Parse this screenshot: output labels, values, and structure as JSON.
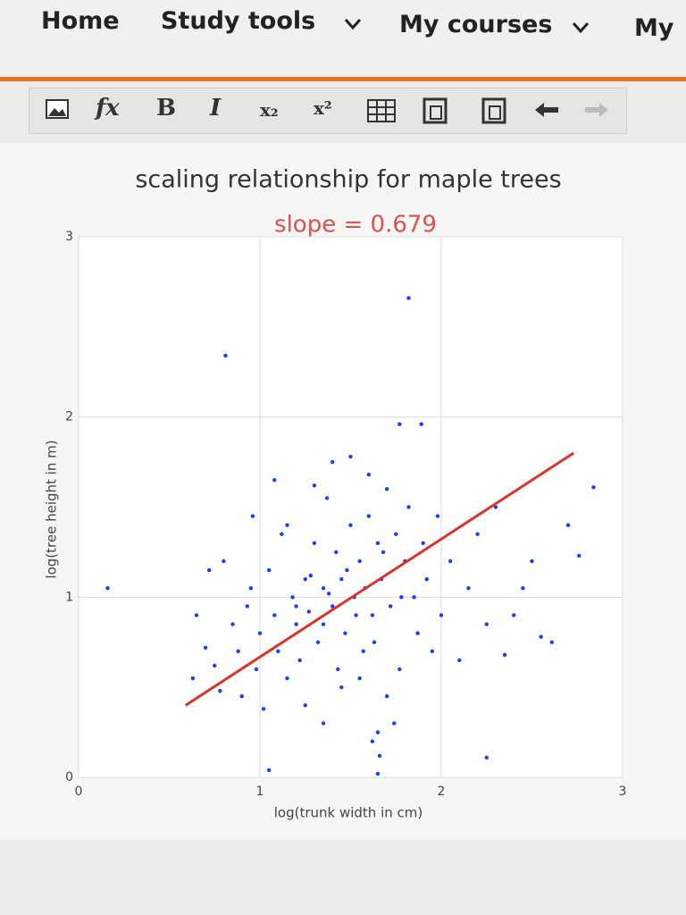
{
  "nav": {
    "items": [
      "Home",
      "Study tools",
      "My courses",
      "My"
    ]
  },
  "toolbar": {
    "buttons": [
      "fx",
      "B",
      "I",
      "x₂",
      "x²"
    ]
  },
  "chart_data": {
    "type": "scatter",
    "title": "scaling relationship for maple trees",
    "subtitle": "slope = 0.679",
    "subtitle_color": "#d9534f",
    "x_label": "log(trunk width in cm)",
    "y_label": "log(tree height in m)",
    "color": "#1e3cff",
    "x": [
      1.82,
      0.81,
      0.16,
      2.84,
      1.05,
      1.65,
      2.25,
      1.77,
      1.89,
      2.61,
      2.76,
      0.63,
      0.65,
      0.7,
      0.75,
      0.78,
      0.8,
      0.85,
      0.88,
      0.9,
      0.93,
      0.95,
      0.98,
      1.0,
      1.02,
      1.05,
      1.08,
      1.1,
      1.12,
      1.15,
      1.18,
      1.2,
      1.22,
      1.25,
      1.27,
      1.3,
      1.32,
      1.35,
      1.37,
      1.4,
      1.42,
      1.45,
      1.47,
      1.5,
      1.52,
      1.55,
      1.57,
      1.6,
      1.62,
      1.65,
      1.67,
      1.7,
      1.72,
      1.75,
      1.77,
      1.8,
      1.82,
      1.85,
      1.87,
      1.9,
      1.92,
      1.95,
      1.98,
      2.0,
      2.05,
      2.1,
      2.15,
      2.2,
      2.25,
      2.3,
      2.4,
      2.5,
      1.25,
      1.35,
      1.45,
      1.55,
      1.65,
      1.4,
      1.5,
      1.6,
      1.3,
      1.7,
      1.2,
      1.35,
      1.48,
      1.58,
      1.68,
      1.78,
      1.15,
      1.43,
      1.63,
      1.53,
      1.38,
      1.28,
      2.35,
      2.45,
      2.55,
      2.7,
      0.72,
      0.96,
      1.08,
      1.62,
      1.66,
      1.74
    ],
    "values": [
      2.66,
      2.34,
      1.05,
      1.61,
      0.04,
      0.02,
      0.11,
      1.96,
      1.96,
      0.75,
      1.23,
      0.55,
      0.9,
      0.72,
      0.62,
      0.48,
      1.2,
      0.85,
      0.7,
      0.45,
      0.95,
      1.05,
      0.6,
      0.8,
      0.38,
      1.15,
      0.9,
      0.7,
      1.35,
      0.55,
      1.0,
      0.85,
      0.65,
      1.1,
      0.92,
      1.3,
      0.75,
      1.05,
      1.55,
      0.95,
      1.25,
      1.1,
      0.8,
      1.4,
      1.0,
      1.2,
      0.7,
      1.45,
      0.9,
      1.3,
      1.1,
      1.6,
      0.95,
      1.35,
      0.6,
      1.2,
      1.5,
      1.0,
      0.8,
      1.3,
      1.1,
      0.7,
      1.45,
      0.9,
      1.2,
      0.65,
      1.05,
      1.35,
      0.85,
      1.5,
      0.9,
      1.2,
      0.4,
      0.3,
      0.5,
      0.55,
      0.25,
      1.75,
      1.78,
      1.68,
      1.62,
      0.45,
      0.95,
      0.85,
      1.15,
      1.05,
      1.25,
      1.0,
      1.4,
      0.6,
      0.75,
      0.9,
      1.02,
      1.12,
      0.68,
      1.05,
      0.78,
      1.4,
      1.15,
      1.45,
      1.65,
      0.2,
      0.12,
      0.3
    ],
    "fit_line": {
      "x": [
        0.59,
        2.73
      ],
      "values": [
        0.4,
        1.8
      ],
      "color": "#d9362b"
    },
    "xlim": [
      0,
      3
    ],
    "ylim": [
      0,
      3
    ],
    "xticks": [
      0,
      1,
      2,
      3
    ],
    "yticks": [
      0,
      1,
      2,
      3
    ],
    "grid": true
  }
}
